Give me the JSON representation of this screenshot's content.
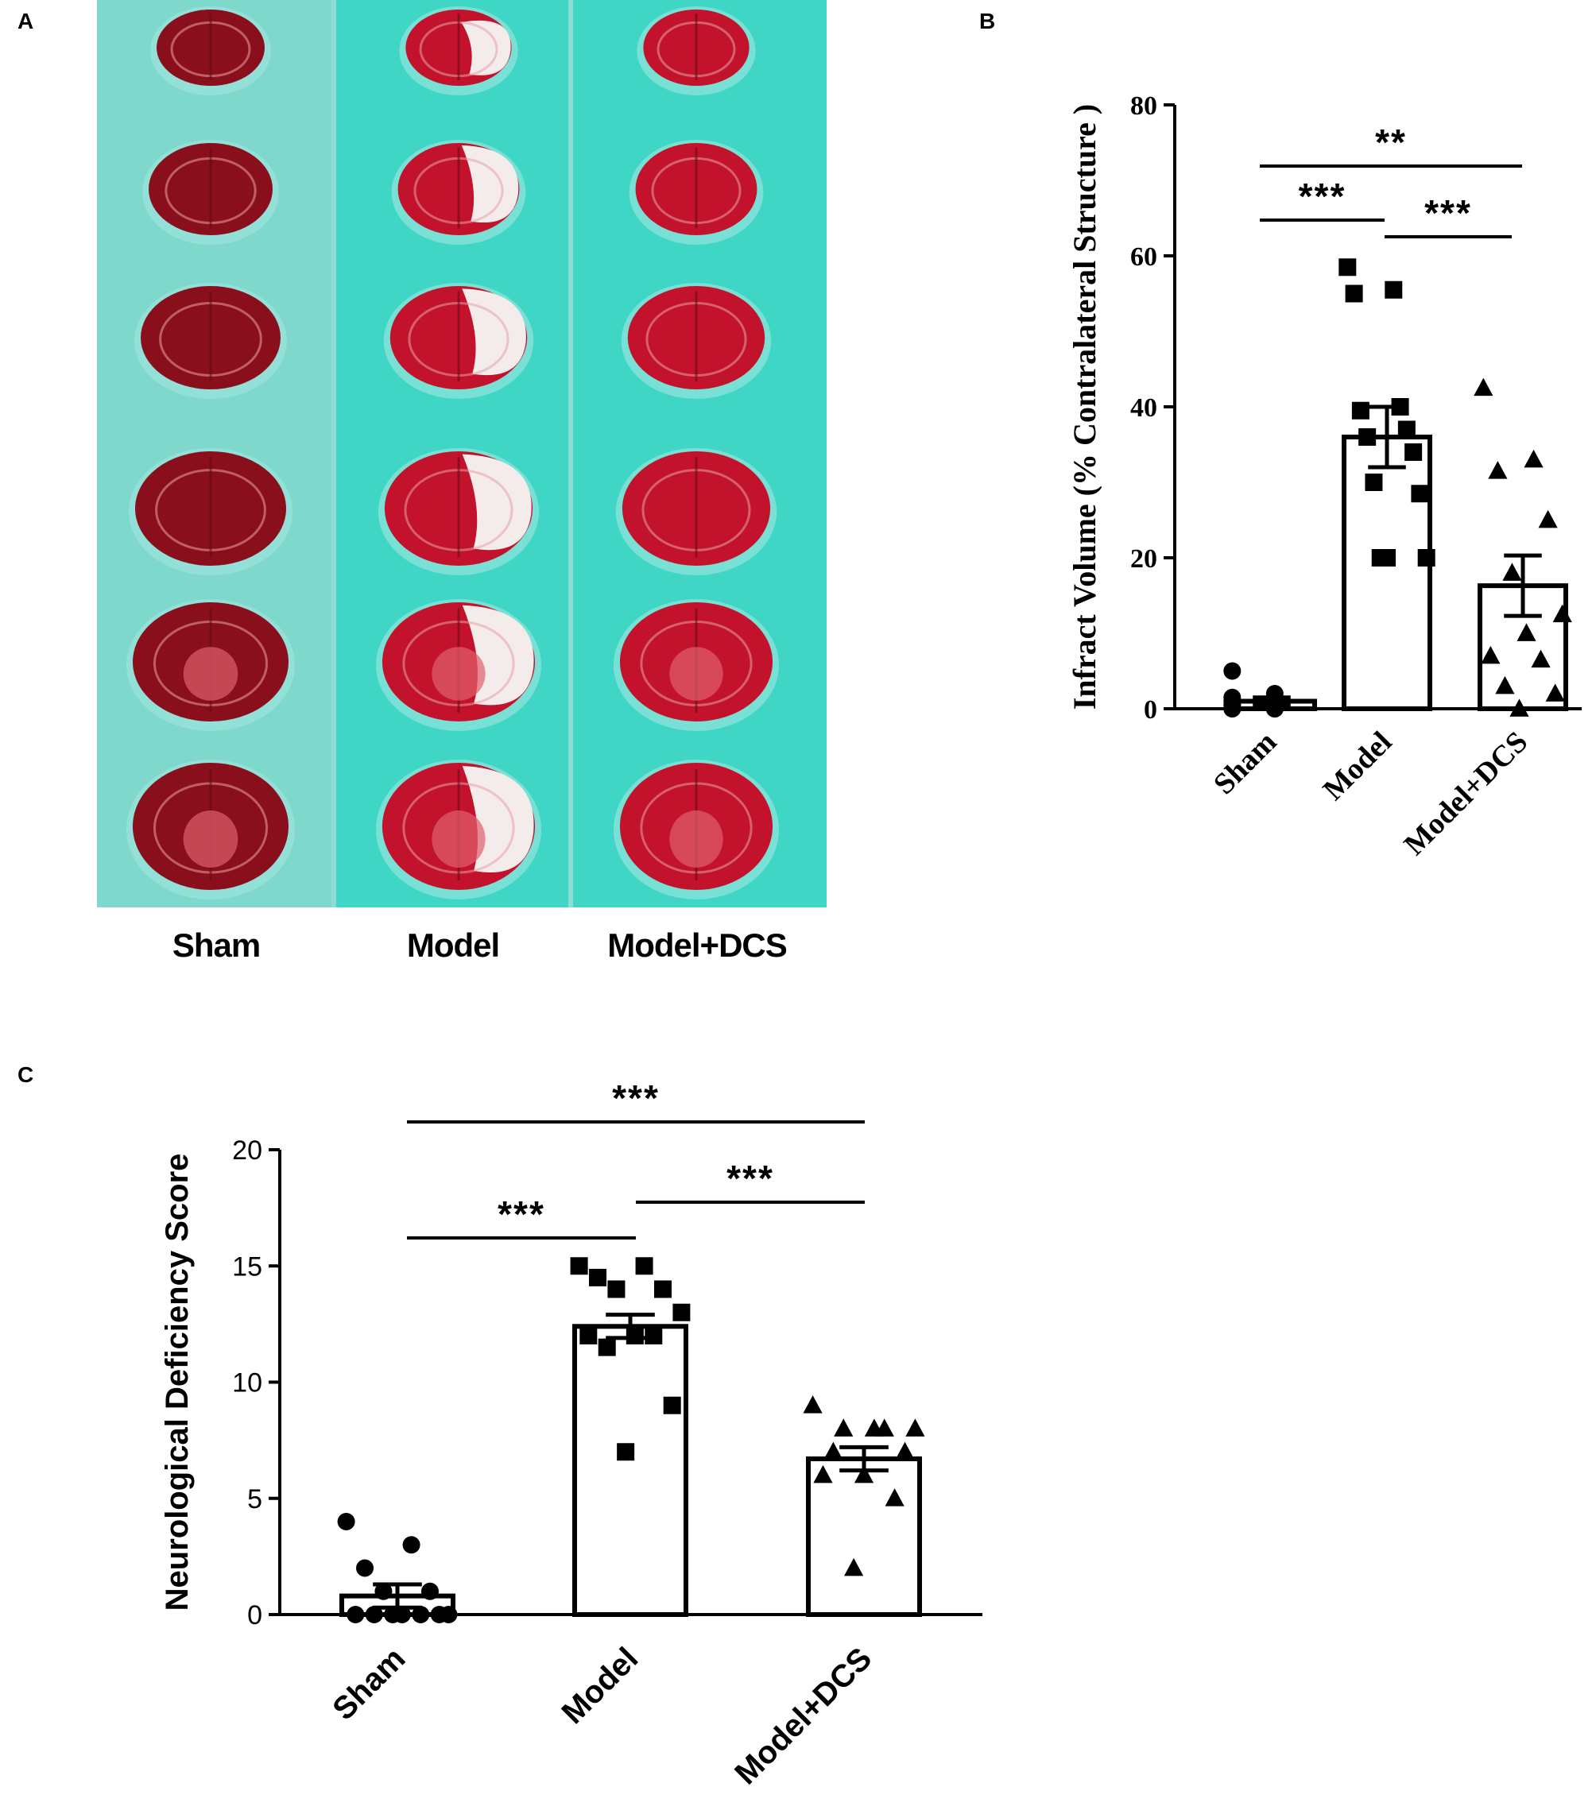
{
  "panels": {
    "a": {
      "letter": "A",
      "group_labels": [
        "Sham",
        "Model",
        "Model+DCS"
      ]
    },
    "b": {
      "letter": "B"
    },
    "c": {
      "letter": "C"
    }
  },
  "colors": {
    "tray_background": "#40d6c6",
    "tray_divider": "#8fdcd4",
    "tissue_red": "#c3122b",
    "tissue_dark": "#8a0f1c",
    "infarct_white": "#f3ecea",
    "ink": "#000000"
  },
  "chart_data": [
    {
      "panel": "B",
      "type": "bar",
      "categories": [
        "Sham",
        "Model",
        "Model+DCS"
      ],
      "values": [
        1,
        36,
        16.3
      ],
      "sem": [
        0.5,
        4,
        4
      ],
      "markers": [
        "circle",
        "square",
        "triangle"
      ],
      "points": [
        [
          5,
          2,
          1.5,
          1,
          1,
          0.5,
          0.5,
          0,
          0,
          0,
          0,
          1,
          0.5,
          0
        ],
        [
          58.5,
          55.5,
          55,
          40,
          39.5,
          37,
          36,
          34,
          30,
          28.5,
          20,
          20,
          20
        ],
        [
          42.5,
          33,
          31.5,
          25,
          18,
          12.5,
          10,
          7,
          6.5,
          3,
          2,
          0
        ]
      ],
      "title": "",
      "xlabel": "",
      "ylabel": "Infract Volume (% Contralateral Structure )",
      "ylim": [
        0,
        80
      ],
      "yticks": [
        0,
        20,
        40,
        60,
        80
      ],
      "grid": false,
      "legend": "none",
      "significance": [
        {
          "from": 0,
          "to": 2,
          "label": "**"
        },
        {
          "from": 0,
          "to": 1,
          "label": "***"
        },
        {
          "from": 1,
          "to": 2,
          "label": "***"
        }
      ]
    },
    {
      "panel": "C",
      "type": "bar",
      "categories": [
        "Sham",
        "Model",
        "Model+DCS"
      ],
      "values": [
        0.8,
        12.4,
        6.7
      ],
      "sem": [
        0.5,
        0.5,
        0.5
      ],
      "markers": [
        "circle",
        "square",
        "triangle"
      ],
      "points": [
        [
          4,
          3,
          2,
          1,
          1,
          0,
          0,
          0,
          0,
          0,
          0,
          0
        ],
        [
          15,
          15,
          14.5,
          14,
          14,
          13,
          12,
          12,
          12,
          11.5,
          9,
          7
        ],
        [
          9,
          8,
          8,
          8,
          8,
          7,
          7,
          6,
          6,
          5,
          2
        ]
      ],
      "title": "",
      "xlabel": "",
      "ylabel": "Neurological Deficiency Score",
      "ylim": [
        0,
        20
      ],
      "yticks": [
        0,
        5,
        10,
        15,
        20
      ],
      "grid": false,
      "legend": "none",
      "significance": [
        {
          "from": 0,
          "to": 2,
          "label": "***"
        },
        {
          "from": 0,
          "to": 1,
          "label": "***"
        },
        {
          "from": 1,
          "to": 2,
          "label": "***"
        }
      ]
    }
  ]
}
